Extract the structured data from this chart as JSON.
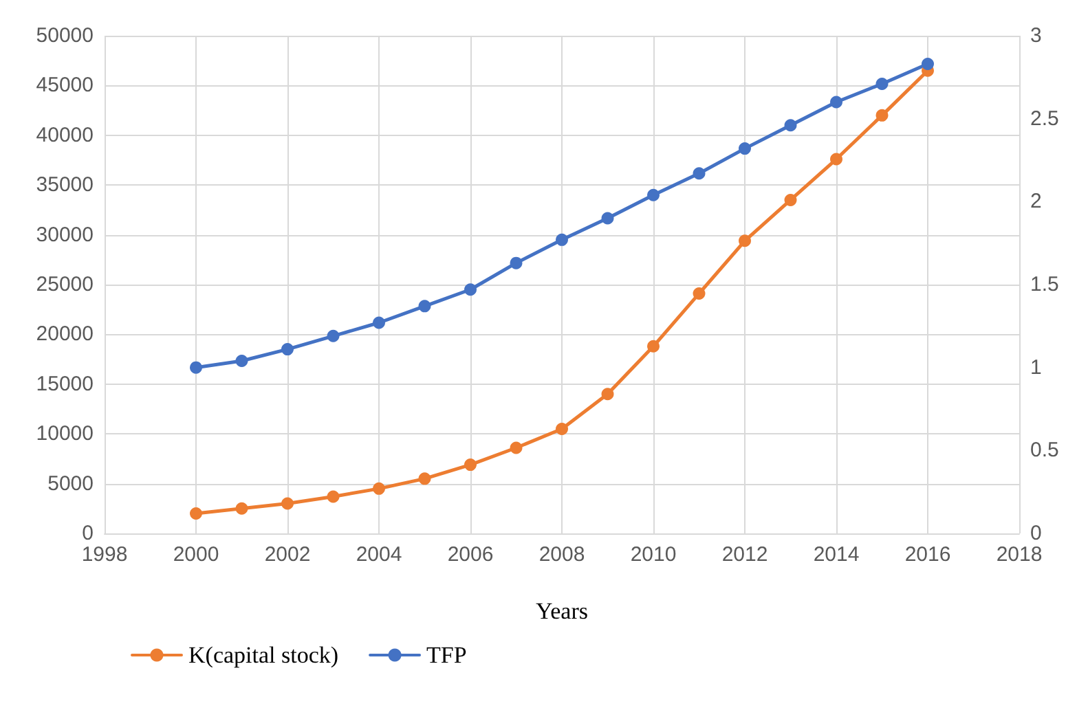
{
  "chart_data": {
    "type": "line",
    "xlabel": "Years",
    "x": [
      2000,
      2001,
      2002,
      2003,
      2004,
      2005,
      2006,
      2007,
      2008,
      2009,
      2010,
      2011,
      2012,
      2013,
      2014,
      2015,
      2016
    ],
    "series": [
      {
        "name": "K(capital stock)",
        "color": "#ed7d31",
        "values": [
          2000,
          2500,
          3000,
          3700,
          4500,
          5500,
          6900,
          8600,
          10500,
          14000,
          18800,
          24100,
          29400,
          33500,
          37600,
          42000,
          46500
        ]
      },
      {
        "name": "TFP",
        "color": "#4472c4",
        "axis": "y2",
        "values": [
          1.0,
          1.04,
          1.11,
          1.19,
          1.27,
          1.37,
          1.47,
          1.63,
          1.77,
          1.9,
          2.04,
          2.17,
          2.32,
          2.46,
          2.6,
          2.71,
          2.83
        ]
      }
    ],
    "xlim": [
      1998,
      2018
    ],
    "xticks": [
      1998,
      2000,
      2002,
      2004,
      2006,
      2008,
      2010,
      2012,
      2014,
      2016,
      2018
    ],
    "ylim": [
      0,
      50000
    ],
    "yticks": [
      0,
      5000,
      10000,
      15000,
      20000,
      25000,
      30000,
      35000,
      40000,
      45000,
      50000
    ],
    "y2lim": [
      0,
      3
    ],
    "y2ticks": [
      0,
      0.5,
      1,
      1.5,
      2,
      2.5,
      3
    ],
    "grid": true,
    "legend": "bottom left",
    "marker": "circle",
    "line_style": "solid"
  }
}
